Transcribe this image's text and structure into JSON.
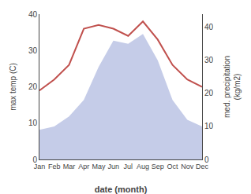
{
  "chart_data": {
    "type": "line",
    "categories": [
      "Jan",
      "Feb",
      "Mar",
      "Apr",
      "May",
      "Jun",
      "Jul",
      "Aug",
      "Sep",
      "Oct",
      "Nov",
      "Dec"
    ],
    "xlabel": "date (month)",
    "ylabel": "max temp (C)",
    "y2label": "med. precipitation\n(kg/m2)",
    "series": [
      {
        "type": "area",
        "axis": "y2",
        "color": "#c5cce8",
        "values": [
          9,
          10,
          13,
          18,
          28,
          36,
          35,
          38,
          30,
          18,
          12,
          10
        ]
      },
      {
        "type": "line",
        "color": "#c0504d",
        "values": [
          19,
          22,
          26,
          36,
          37,
          36,
          34,
          38,
          33,
          26,
          22,
          20
        ]
      }
    ],
    "ylim": [
      0,
      40
    ],
    "yticks": [
      0,
      10,
      20,
      30,
      40
    ],
    "y2lim": [
      0,
      44
    ],
    "y2ticks": [
      0,
      10,
      20,
      30,
      40
    ],
    "grid": false
  }
}
